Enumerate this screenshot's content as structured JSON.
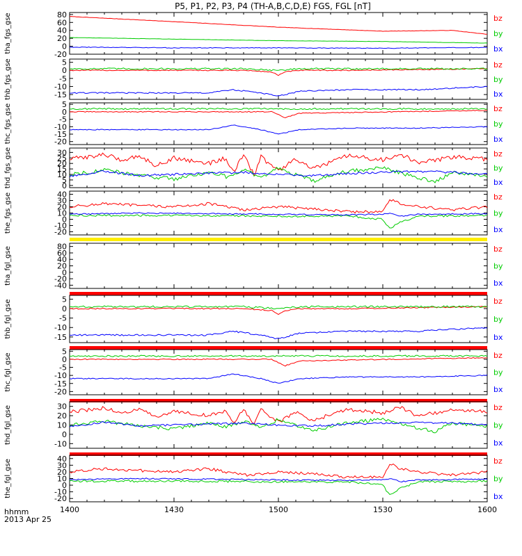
{
  "title": "P5, P1, P2, P3, P4 (TH-A,B,C,D,E) FGS, FGL [nT]",
  "xaxis": {
    "ticks": [
      "1400",
      "1430",
      "1500",
      "1530",
      "1600"
    ],
    "tick_minutes": [
      0,
      30,
      60,
      90,
      120
    ],
    "range_minutes": [
      0,
      120
    ],
    "label_line1": "hhmm",
    "label_line2": "2013 Apr 25"
  },
  "colors": {
    "bz": "#ff0000",
    "by": "#00cc00",
    "bx": "#0000ff",
    "flag": "#ffee00",
    "bar": "#ff0000"
  },
  "chart_data": [
    {
      "type": "line",
      "ylabel": "tha_fgs_gse",
      "ylim": [
        -20,
        85
      ],
      "yticks": [
        -20,
        0,
        20,
        40,
        60,
        80
      ],
      "legend": [
        "bz",
        "by",
        "bx"
      ],
      "series": [
        {
          "name": "bz",
          "x": [
            0,
            30,
            60,
            90,
            110,
            120
          ],
          "y": [
            75,
            62,
            48,
            38,
            40,
            30
          ],
          "noise": 0.4
        },
        {
          "name": "by",
          "x": [
            0,
            30,
            60,
            90,
            120
          ],
          "y": [
            22,
            18,
            14,
            12,
            8
          ],
          "noise": 0.3
        },
        {
          "name": "bx",
          "x": [
            0,
            30,
            60,
            90,
            120
          ],
          "y": [
            -2,
            -4,
            -4,
            -5,
            -3
          ],
          "noise": 0.8
        }
      ]
    },
    {
      "type": "line",
      "ylabel": "thb_fgs_gse",
      "ylim": [
        -18,
        7
      ],
      "yticks": [
        -15,
        -10,
        -5,
        0,
        5
      ],
      "legend": [
        "bz",
        "by",
        "bx"
      ],
      "series": [
        {
          "name": "bz",
          "x": [
            0,
            50,
            58,
            60,
            62,
            66,
            80,
            120
          ],
          "y": [
            0,
            0,
            -1,
            -3,
            -1,
            0,
            0,
            1
          ],
          "noise": 0.3
        },
        {
          "name": "by",
          "x": [
            0,
            50,
            60,
            66,
            120
          ],
          "y": [
            1,
            1,
            0,
            1,
            1
          ],
          "noise": 0.5
        },
        {
          "name": "bx",
          "x": [
            0,
            40,
            47,
            55,
            60,
            66,
            80,
            100,
            120
          ],
          "y": [
            -14,
            -14,
            -12,
            -14,
            -16,
            -13,
            -12,
            -12,
            -10
          ],
          "noise": 0.4
        }
      ]
    },
    {
      "type": "line",
      "ylabel": "thc_fgs_gse",
      "ylim": [
        -22,
        6
      ],
      "yticks": [
        -20,
        -15,
        -10,
        -5,
        0,
        5
      ],
      "legend": [
        "bz",
        "by",
        "bx"
      ],
      "series": [
        {
          "name": "bz",
          "x": [
            0,
            58,
            60,
            62,
            66,
            120
          ],
          "y": [
            0,
            0,
            -2,
            -4,
            -1,
            1
          ],
          "noise": 0.3
        },
        {
          "name": "by",
          "x": [
            0,
            60,
            120
          ],
          "y": [
            2,
            2,
            2
          ],
          "noise": 0.5
        },
        {
          "name": "bx",
          "x": [
            0,
            40,
            47,
            55,
            60,
            66,
            80,
            100,
            120
          ],
          "y": [
            -12,
            -12,
            -9,
            -12,
            -15,
            -12,
            -11,
            -11,
            -10
          ],
          "noise": 0.3
        }
      ]
    },
    {
      "type": "line",
      "ylabel": "thd_fgs_gse",
      "ylim": [
        -2,
        34
      ],
      "yticks": [
        0,
        5,
        10,
        15,
        20,
        25,
        30
      ],
      "legend": [
        "bz",
        "by",
        "bx"
      ],
      "series": [
        {
          "name": "bz",
          "x": [
            0,
            10,
            15,
            20,
            25,
            30,
            40,
            45,
            47,
            50,
            53,
            55,
            60,
            65,
            70,
            80,
            90,
            95,
            100,
            110,
            120
          ],
          "y": [
            24,
            28,
            23,
            27,
            18,
            25,
            20,
            25,
            12,
            27,
            10,
            26,
            13,
            24,
            15,
            27,
            23,
            29,
            20,
            26,
            24
          ],
          "noise": 2.0
        },
        {
          "name": "by",
          "x": [
            0,
            10,
            20,
            30,
            40,
            45,
            50,
            55,
            60,
            65,
            70,
            80,
            90,
            100,
            105,
            110,
            120
          ],
          "y": [
            10,
            14,
            9,
            6,
            12,
            8,
            14,
            7,
            16,
            10,
            4,
            13,
            16,
            7,
            3,
            12,
            9
          ],
          "noise": 1.8
        },
        {
          "name": "bx",
          "x": [
            0,
            10,
            20,
            30,
            40,
            50,
            60,
            70,
            80,
            90,
            100,
            110,
            120
          ],
          "y": [
            8,
            13,
            9,
            10,
            11,
            12,
            10,
            9,
            11,
            12,
            13,
            12,
            10
          ],
          "noise": 1.0
        }
      ]
    },
    {
      "type": "line",
      "ylabel": "the_fgs_gse",
      "ylim": [
        -25,
        45
      ],
      "yticks": [
        -20,
        -10,
        0,
        10,
        20,
        30,
        40
      ],
      "legend": [
        "bz",
        "by",
        "bx"
      ],
      "series": [
        {
          "name": "bz",
          "x": [
            0,
            10,
            20,
            30,
            40,
            50,
            60,
            70,
            80,
            90,
            92,
            95,
            100,
            110,
            120
          ],
          "y": [
            20,
            25,
            22,
            20,
            25,
            15,
            20,
            17,
            12,
            12,
            32,
            25,
            20,
            15,
            20
          ],
          "noise": 2.2
        },
        {
          "name": "by",
          "x": [
            0,
            20,
            40,
            60,
            80,
            90,
            92,
            95,
            100,
            120
          ],
          "y": [
            6,
            6,
            6,
            5,
            5,
            0,
            -15,
            -5,
            5,
            6
          ],
          "noise": 1.5
        },
        {
          "name": "bx",
          "x": [
            0,
            20,
            40,
            60,
            80,
            90,
            92,
            95,
            100,
            120
          ],
          "y": [
            8,
            10,
            9,
            8,
            7,
            8,
            10,
            5,
            8,
            9
          ],
          "noise": 1.0
        }
      ]
    },
    {
      "type": "line",
      "ylabel": "tha_fgl_gse",
      "ylim": [
        -50,
        90
      ],
      "yticks": [
        -40,
        -20,
        0,
        20,
        40,
        60,
        80
      ],
      "legend": [
        "bz",
        "by",
        "bx"
      ],
      "series": []
    },
    {
      "type": "line",
      "ylabel": "thb_fgl_gse",
      "ylim": [
        -18,
        7
      ],
      "yticks": [
        -15,
        -10,
        -5,
        0,
        5
      ],
      "legend": [
        "bz",
        "by",
        "bx"
      ],
      "series": [
        {
          "name": "bz",
          "x": [
            0,
            50,
            58,
            60,
            62,
            66,
            80,
            120
          ],
          "y": [
            0,
            0,
            -1,
            -3,
            -1,
            0,
            0,
            1
          ],
          "noise": 0.3
        },
        {
          "name": "by",
          "x": [
            0,
            50,
            60,
            66,
            120
          ],
          "y": [
            1,
            1,
            0,
            1,
            1
          ],
          "noise": 0.5
        },
        {
          "name": "bx",
          "x": [
            0,
            40,
            47,
            55,
            60,
            66,
            80,
            100,
            120
          ],
          "y": [
            -14,
            -14,
            -12,
            -14,
            -16,
            -13,
            -12,
            -12,
            -10
          ],
          "noise": 0.4
        }
      ]
    },
    {
      "type": "line",
      "ylabel": "thc_fgl_gse",
      "ylim": [
        -22,
        6
      ],
      "yticks": [
        -20,
        -15,
        -10,
        -5,
        0,
        5
      ],
      "legend": [
        "bz",
        "by",
        "bx"
      ],
      "series": [
        {
          "name": "bz",
          "x": [
            0,
            58,
            60,
            62,
            66,
            120
          ],
          "y": [
            0,
            0,
            -2,
            -4,
            -1,
            1
          ],
          "noise": 0.3
        },
        {
          "name": "by",
          "x": [
            0,
            60,
            120
          ],
          "y": [
            2,
            2,
            2
          ],
          "noise": 0.5
        },
        {
          "name": "bx",
          "x": [
            0,
            40,
            47,
            55,
            60,
            66,
            80,
            100,
            120
          ],
          "y": [
            -12,
            -12,
            -9,
            -12,
            -15,
            -12,
            -11,
            -11,
            -10
          ],
          "noise": 0.3
        }
      ]
    },
    {
      "type": "line",
      "ylabel": "thd_fgl_gse",
      "ylim": [
        -15,
        35
      ],
      "yticks": [
        -10,
        0,
        10,
        20,
        30
      ],
      "legend": [
        "bz",
        "by",
        "bx"
      ],
      "series": [
        {
          "name": "bz",
          "x": [
            0,
            10,
            15,
            20,
            25,
            30,
            40,
            45,
            47,
            50,
            53,
            55,
            60,
            65,
            70,
            80,
            90,
            95,
            100,
            110,
            120
          ],
          "y": [
            24,
            28,
            23,
            27,
            18,
            25,
            20,
            25,
            12,
            27,
            10,
            26,
            13,
            24,
            15,
            27,
            23,
            29,
            20,
            26,
            24
          ],
          "noise": 2.0
        },
        {
          "name": "by",
          "x": [
            0,
            10,
            20,
            30,
            40,
            45,
            50,
            55,
            60,
            65,
            70,
            80,
            90,
            100,
            105,
            110,
            120
          ],
          "y": [
            10,
            14,
            9,
            6,
            12,
            8,
            14,
            7,
            16,
            10,
            4,
            13,
            16,
            7,
            3,
            12,
            9
          ],
          "noise": 1.8
        },
        {
          "name": "bx",
          "x": [
            0,
            10,
            20,
            30,
            40,
            50,
            60,
            70,
            80,
            90,
            100,
            110,
            120
          ],
          "y": [
            8,
            13,
            9,
            10,
            11,
            12,
            10,
            9,
            11,
            12,
            13,
            12,
            10
          ],
          "noise": 1.0
        }
      ]
    },
    {
      "type": "line",
      "ylabel": "the_fgl_gse",
      "ylim": [
        -25,
        45
      ],
      "yticks": [
        -20,
        -10,
        0,
        10,
        20,
        30,
        40
      ],
      "legend": [
        "bz",
        "by",
        "bx"
      ],
      "series": [
        {
          "name": "bz",
          "x": [
            0,
            10,
            20,
            30,
            40,
            50,
            60,
            70,
            80,
            90,
            92,
            95,
            100,
            110,
            120
          ],
          "y": [
            20,
            25,
            22,
            20,
            25,
            15,
            20,
            17,
            12,
            12,
            32,
            25,
            20,
            15,
            20
          ],
          "noise": 2.2
        },
        {
          "name": "by",
          "x": [
            0,
            20,
            40,
            60,
            80,
            90,
            92,
            95,
            100,
            120
          ],
          "y": [
            6,
            6,
            6,
            5,
            5,
            0,
            -15,
            -5,
            5,
            6
          ],
          "noise": 1.5
        },
        {
          "name": "bx",
          "x": [
            0,
            20,
            40,
            60,
            80,
            90,
            92,
            95,
            100,
            120
          ],
          "y": [
            8,
            10,
            9,
            8,
            7,
            8,
            10,
            5,
            8,
            9
          ],
          "noise": 1.0
        }
      ]
    }
  ]
}
